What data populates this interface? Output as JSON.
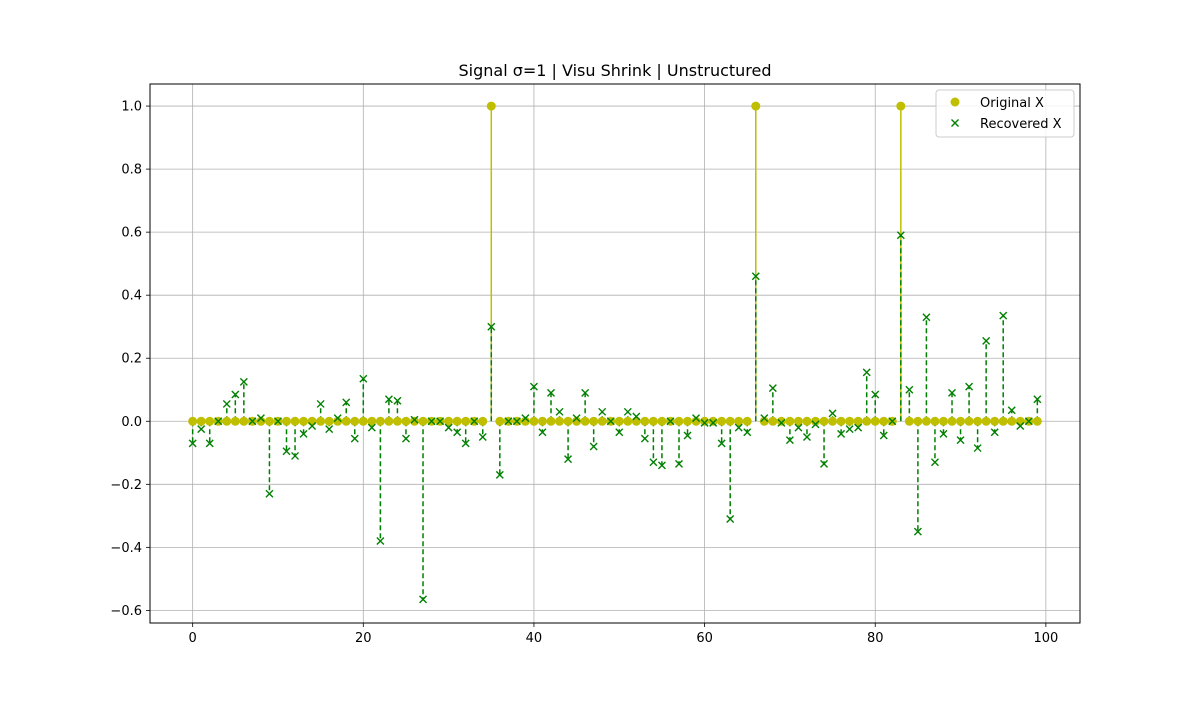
{
  "chart_data": {
    "type": "stem",
    "title": "Signal σ=1 | Visu Shrink | Unstructured",
    "xlabel": "",
    "ylabel": "",
    "xlim": [
      -5,
      104
    ],
    "ylim": [
      -0.64,
      1.07
    ],
    "xticks": [
      0,
      20,
      40,
      60,
      80,
      100
    ],
    "yticks": [
      -0.6,
      -0.4,
      -0.2,
      0.0,
      0.2,
      0.4,
      0.6,
      0.8,
      1.0
    ],
    "grid": true,
    "legend_position": "top-right",
    "x": [
      0,
      1,
      2,
      3,
      4,
      5,
      6,
      7,
      8,
      9,
      10,
      11,
      12,
      13,
      14,
      15,
      16,
      17,
      18,
      19,
      20,
      21,
      22,
      23,
      24,
      25,
      26,
      27,
      28,
      29,
      30,
      31,
      32,
      33,
      34,
      35,
      36,
      37,
      38,
      39,
      40,
      41,
      42,
      43,
      44,
      45,
      46,
      47,
      48,
      49,
      50,
      51,
      52,
      53,
      54,
      55,
      56,
      57,
      58,
      59,
      60,
      61,
      62,
      63,
      64,
      65,
      66,
      67,
      68,
      69,
      70,
      71,
      72,
      73,
      74,
      75,
      76,
      77,
      78,
      79,
      80,
      81,
      82,
      83,
      84,
      85,
      86,
      87,
      88,
      89,
      90,
      91,
      92,
      93,
      94,
      95,
      96,
      97,
      98,
      99
    ],
    "series": [
      {
        "name": "Original X",
        "color": "#bfbf00",
        "marker": "circle",
        "linestyle": "solid",
        "values": [
          0,
          0,
          0,
          0,
          0,
          0,
          0,
          0,
          0,
          0,
          0,
          0,
          0,
          0,
          0,
          0,
          0,
          0,
          0,
          0,
          0,
          0,
          0,
          0,
          0,
          0,
          0,
          0,
          0,
          0,
          0,
          0,
          0,
          0,
          0,
          1,
          0,
          0,
          0,
          0,
          0,
          0,
          0,
          0,
          0,
          0,
          0,
          0,
          0,
          0,
          0,
          0,
          0,
          0,
          0,
          0,
          0,
          0,
          0,
          0,
          0,
          0,
          0,
          0,
          0,
          0,
          1,
          0,
          0,
          0,
          0,
          0,
          0,
          0,
          0,
          0,
          0,
          0,
          0,
          0,
          0,
          0,
          0,
          1,
          0,
          0,
          0,
          0,
          0,
          0,
          0,
          0,
          0,
          0,
          0,
          0,
          0,
          0,
          0,
          0
        ]
      },
      {
        "name": "Recovered X",
        "color": "#008000",
        "marker": "x",
        "linestyle": "dashed",
        "values": [
          -0.07,
          -0.025,
          -0.07,
          0.0,
          0.055,
          0.085,
          0.125,
          0.0,
          0.01,
          -0.23,
          0.0,
          -0.095,
          -0.11,
          -0.04,
          -0.015,
          0.055,
          -0.025,
          0.01,
          0.06,
          -0.055,
          0.135,
          -0.02,
          -0.38,
          0.07,
          0.065,
          -0.055,
          0.005,
          -0.565,
          0.0,
          0.0,
          -0.02,
          -0.035,
          -0.07,
          0.0,
          -0.05,
          0.3,
          -0.17,
          0.0,
          0.0,
          0.01,
          0.11,
          -0.035,
          0.09,
          0.03,
          -0.12,
          0.01,
          0.09,
          -0.08,
          0.03,
          0.0,
          -0.035,
          0.03,
          0.015,
          -0.055,
          -0.13,
          -0.14,
          0.0,
          -0.135,
          -0.045,
          0.01,
          -0.005,
          -0.005,
          -0.07,
          -0.31,
          -0.02,
          -0.035,
          0.46,
          0.01,
          0.105,
          -0.005,
          -0.06,
          -0.02,
          -0.05,
          -0.01,
          -0.135,
          0.025,
          -0.04,
          -0.025,
          -0.02,
          0.155,
          0.085,
          -0.045,
          0.0,
          0.59,
          0.1,
          -0.35,
          0.33,
          -0.13,
          -0.04,
          0.09,
          -0.06,
          0.11,
          -0.085,
          0.255,
          -0.035,
          0.335,
          0.035,
          -0.015,
          0.0,
          0.07
        ]
      }
    ]
  }
}
